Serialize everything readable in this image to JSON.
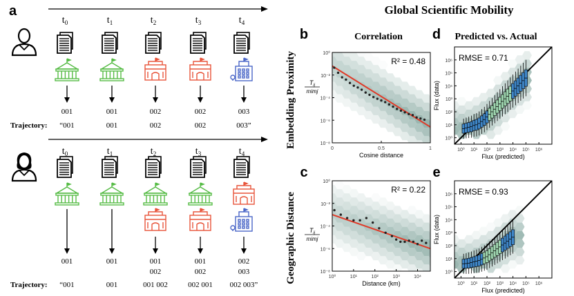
{
  "panel_a": {
    "label": "a",
    "times": [
      "t0",
      "t1",
      "t2",
      "t3",
      "t4"
    ],
    "trajectory_label": "Trajectory:",
    "top": {
      "rows1": [
        "001",
        "001",
        "002",
        "002",
        "003"
      ],
      "trajectory": [
        "“001",
        "001",
        "002",
        "002",
        "003”"
      ]
    },
    "bottom": {
      "rows1": [
        "001",
        "001",
        "001",
        "001",
        "002"
      ],
      "rows2": [
        "",
        "",
        "002",
        "002",
        "003"
      ],
      "trajectory": [
        "“001",
        "001",
        "001 002",
        "002 001",
        "002 003”"
      ]
    }
  },
  "figure": {
    "title": "Global Scientific Mobility",
    "col_b_title": "Correlation",
    "col_d_title": "Predicted vs. Actual",
    "row1_label": "Embedding Proximity",
    "row2_label": "Geographic Distance",
    "panel_labels": {
      "b": "b",
      "c": "c",
      "d": "d",
      "e": "e"
    },
    "frac_num": "T",
    "frac_num_sub": "ij",
    "frac_den": "mimj"
  },
  "colors": {
    "green": "#55bb44",
    "red": "#e8543a",
    "blue": "#4a66c8",
    "hexbin": "#7fa39b",
    "fit": "#e03a28",
    "scatter_point": "#222222",
    "box_blue": "#3f86c7",
    "box_green": "#9fd6b0"
  },
  "chart_data": [
    {
      "id": "b",
      "type": "scatter",
      "title": "Correlation",
      "xlabel": "Cosine distance",
      "ylabel": "Tij / mimj",
      "xlim": [
        0,
        1
      ],
      "ylim_log10": [
        -8,
        0
      ],
      "xticks": [
        {
          "v": 0,
          "label": "0"
        },
        {
          "v": 0.5,
          "label": "0.5"
        },
        {
          "v": 1,
          "label": "1"
        }
      ],
      "yticks": [
        {
          "v": 0,
          "label": "10⁰"
        },
        {
          "v": -2,
          "label": "10⁻²"
        },
        {
          "v": -4,
          "label": "10⁻⁴"
        },
        {
          "v": -6,
          "label": "10⁻⁶"
        },
        {
          "v": -8,
          "label": "10⁻⁸"
        }
      ],
      "annotation": "R² = 0.48",
      "fit": [
        [
          0,
          -1.2
        ],
        [
          1,
          -6.6
        ]
      ],
      "x": [
        0.02,
        0.06,
        0.1,
        0.14,
        0.18,
        0.22,
        0.26,
        0.3,
        0.34,
        0.38,
        0.42,
        0.46,
        0.5,
        0.54,
        0.58,
        0.62,
        0.66,
        0.7,
        0.74,
        0.78,
        0.82,
        0.86,
        0.9,
        0.94
      ],
      "y": [
        -1.35,
        -1.8,
        -2.2,
        -2.4,
        -2.7,
        -2.95,
        -3.1,
        -3.3,
        -3.55,
        -3.75,
        -3.95,
        -4.1,
        -4.25,
        -4.4,
        -4.6,
        -4.8,
        -5.0,
        -5.15,
        -5.3,
        -5.45,
        -5.55,
        -5.75,
        -5.85,
        -5.95
      ]
    },
    {
      "id": "c",
      "type": "scatter",
      "xlabel": "Distance (km)",
      "ylabel": "Tij / mimj",
      "xlim_log10": [
        0,
        4.6
      ],
      "ylim_log10": [
        -8,
        0
      ],
      "xticks": [
        {
          "v": 0,
          "label": "10⁰"
        },
        {
          "v": 1,
          "label": "10¹"
        },
        {
          "v": 2,
          "label": "10²"
        },
        {
          "v": 3,
          "label": "10³"
        },
        {
          "v": 4,
          "label": "10⁴"
        }
      ],
      "yticks": [
        {
          "v": 0,
          "label": "10⁰"
        },
        {
          "v": -2,
          "label": "10⁻²"
        },
        {
          "v": -4,
          "label": "10⁻⁴"
        },
        {
          "v": -6,
          "label": "10⁻⁶"
        },
        {
          "v": -8,
          "label": "10⁻⁸"
        }
      ],
      "annotation": "R² = 0.22",
      "fit": [
        [
          0,
          -3.0
        ],
        [
          4.6,
          -6.0
        ]
      ],
      "x": [
        0.1,
        0.4,
        0.7,
        1.0,
        1.3,
        1.6,
        1.9,
        2.2,
        2.5,
        2.8,
        3.0,
        3.2,
        3.4,
        3.6,
        3.8,
        4.0,
        4.2,
        4.4
      ],
      "y": [
        -2.6,
        -3.0,
        -3.3,
        -3.5,
        -3.5,
        -3.3,
        -3.7,
        -4.2,
        -4.6,
        -4.9,
        -5.2,
        -5.4,
        -5.4,
        -5.3,
        -5.4,
        -5.6,
        -5.3,
        -5.5
      ]
    },
    {
      "id": "d",
      "type": "scatter",
      "title": "Predicted vs. Actual",
      "xlabel": "Flux (predicted)",
      "ylabel": "Flux (data)",
      "xlim_log10": [
        -0.5,
        7
      ],
      "ylim_log10": [
        -0.5,
        7
      ],
      "xticks": [
        {
          "v": 0,
          "label": "10⁰"
        },
        {
          "v": 1,
          "label": "10¹"
        },
        {
          "v": 2,
          "label": "10²"
        },
        {
          "v": 3,
          "label": "10³"
        },
        {
          "v": 4,
          "label": "10⁴"
        },
        {
          "v": 5,
          "label": "10⁵"
        },
        {
          "v": 6,
          "label": "10⁶"
        }
      ],
      "yticks": [
        {
          "v": 0,
          "label": "10⁰"
        },
        {
          "v": 1,
          "label": "10¹"
        },
        {
          "v": 2,
          "label": "10²"
        },
        {
          "v": 3,
          "label": "10³"
        },
        {
          "v": 4,
          "label": "10⁴"
        },
        {
          "v": 5,
          "label": "10⁵"
        },
        {
          "v": 6,
          "label": "10⁶"
        }
      ],
      "annotation": "RMSE = 0.71",
      "diagonal": [
        [
          -0.5,
          -0.5
        ],
        [
          7,
          7
        ]
      ],
      "box_x": [
        0.2,
        0.4,
        0.6,
        0.8,
        1.0,
        1.2,
        1.4,
        1.6,
        1.8,
        2.0,
        2.2,
        2.4,
        2.6,
        2.8,
        3.0,
        3.2,
        3.4,
        3.6,
        3.8,
        4.0,
        4.2,
        4.4,
        4.6,
        4.8,
        5.0
      ],
      "box_median": [
        0.7,
        0.75,
        0.8,
        0.85,
        0.95,
        1.0,
        1.1,
        1.25,
        1.4,
        1.6,
        1.8,
        2.0,
        2.2,
        2.4,
        2.6,
        2.8,
        3.0,
        3.2,
        3.4,
        3.6,
        3.8,
        4.0,
        4.2,
        4.4,
        4.6
      ]
    },
    {
      "id": "e",
      "type": "scatter",
      "xlabel": "Flux (predicted)",
      "ylabel": "Flux (data)",
      "xlim_log10": [
        -0.5,
        7
      ],
      "ylim_log10": [
        -0.5,
        7
      ],
      "xticks": [
        {
          "v": 0,
          "label": "10⁰"
        },
        {
          "v": 1,
          "label": "10¹"
        },
        {
          "v": 2,
          "label": "10²"
        },
        {
          "v": 3,
          "label": "10³"
        },
        {
          "v": 4,
          "label": "10⁴"
        },
        {
          "v": 5,
          "label": "10⁵"
        },
        {
          "v": 6,
          "label": "10⁶"
        }
      ],
      "yticks": [
        {
          "v": 0,
          "label": "10⁰"
        },
        {
          "v": 1,
          "label": "10¹"
        },
        {
          "v": 2,
          "label": "10²"
        },
        {
          "v": 3,
          "label": "10³"
        },
        {
          "v": 4,
          "label": "10⁴"
        },
        {
          "v": 5,
          "label": "10⁵"
        },
        {
          "v": 6,
          "label": "10⁶"
        }
      ],
      "annotation": "RMSE = 0.93",
      "diagonal": [
        [
          -0.5,
          -0.5
        ],
        [
          7,
          7
        ]
      ],
      "box_x": [
        0.2,
        0.4,
        0.6,
        0.8,
        1.0,
        1.2,
        1.4,
        1.6,
        1.8,
        2.0,
        2.2,
        2.4,
        2.6,
        2.8,
        3.0,
        3.2,
        3.4,
        3.6,
        3.8,
        4.0
      ],
      "box_median": [
        0.6,
        0.62,
        0.65,
        0.7,
        0.75,
        0.8,
        0.85,
        0.95,
        1.05,
        1.15,
        1.3,
        1.45,
        1.6,
        1.75,
        1.9,
        2.05,
        2.2,
        2.35,
        2.5,
        2.65
      ]
    }
  ]
}
